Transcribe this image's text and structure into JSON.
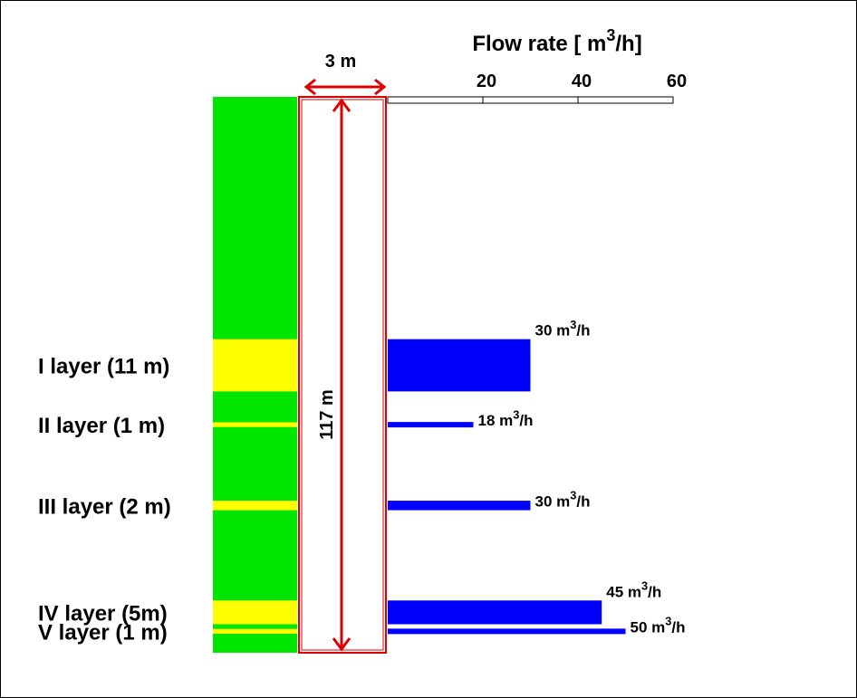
{
  "chart_data": {
    "type": "bar",
    "orientation": "horizontal",
    "x_axis": {
      "title_prefix": "Flow rate [ m",
      "title_sup": "3",
      "title_suffix": "/h]",
      "xlim": [
        0,
        60
      ],
      "ticks": [
        20,
        40,
        60
      ],
      "tick_labels": [
        "20",
        "40",
        "60"
      ],
      "position": "top"
    },
    "well": {
      "width_label": "3 m",
      "depth_label": "117 m",
      "depth_m": 117
    },
    "layers": [
      {
        "label": "I layer (11 m)",
        "top_m": 51,
        "thickness_m": 11,
        "flow": 30,
        "rate_value": "30 m",
        "rate_sup": "3",
        "rate_unit": "/h"
      },
      {
        "label": "II layer (1 m)",
        "top_m": 68.5,
        "thickness_m": 1,
        "flow": 18,
        "rate_value": "18 m",
        "rate_sup": "3",
        "rate_unit": "/h"
      },
      {
        "label": "III layer (2 m)",
        "top_m": 85,
        "thickness_m": 2,
        "flow": 30,
        "rate_value": "30 m",
        "rate_sup": "3",
        "rate_unit": "/h"
      },
      {
        "label": "IV layer (5m)",
        "top_m": 106,
        "thickness_m": 5,
        "flow": 45,
        "rate_value": "45 m",
        "rate_sup": "3",
        "rate_unit": "/h"
      },
      {
        "label": "V layer (1 m)",
        "top_m": 112,
        "thickness_m": 1,
        "flow": 50,
        "rate_value": "50 m",
        "rate_sup": "3",
        "rate_unit": "/h"
      }
    ],
    "colors": {
      "formation": "#00e600",
      "aquifer_layer": "#ffff00",
      "flow_bar": "#0000ff",
      "well": "#dd0000"
    }
  }
}
